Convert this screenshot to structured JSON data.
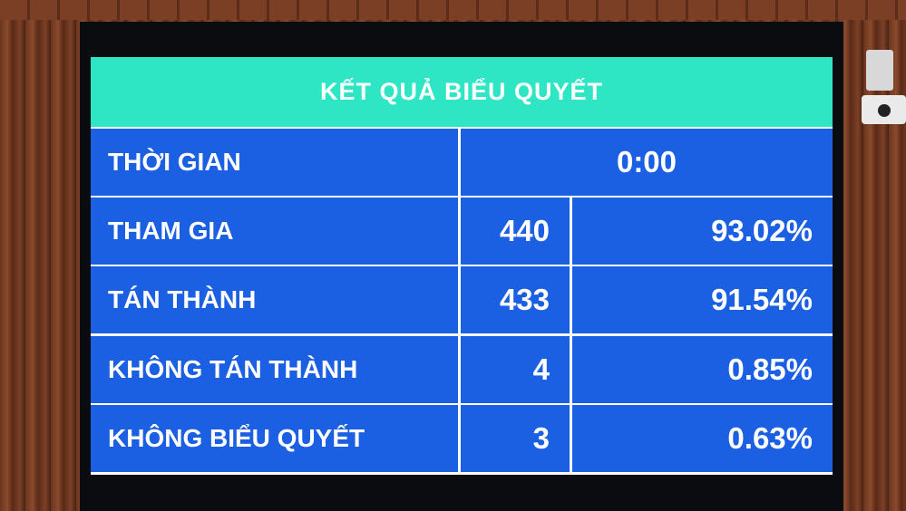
{
  "title": "KẾT QUẢ BIỂU QUYẾT",
  "time": {
    "label": "THỜI GIAN",
    "value": "0:00"
  },
  "rows": [
    {
      "label": "THAM GIA",
      "count": "440",
      "percent": "93.02%"
    },
    {
      "label": "TÁN THÀNH",
      "count": "433",
      "percent": "91.54%"
    },
    {
      "label": "KHÔNG TÁN THÀNH",
      "count": "4",
      "percent": "0.85%"
    },
    {
      "label": "KHÔNG BIỂU QUYẾT",
      "count": "3",
      "percent": "0.63%"
    }
  ],
  "colors": {
    "header": "#2fe6c4",
    "cells": "#1b5fe3",
    "text": "#ffffff"
  }
}
